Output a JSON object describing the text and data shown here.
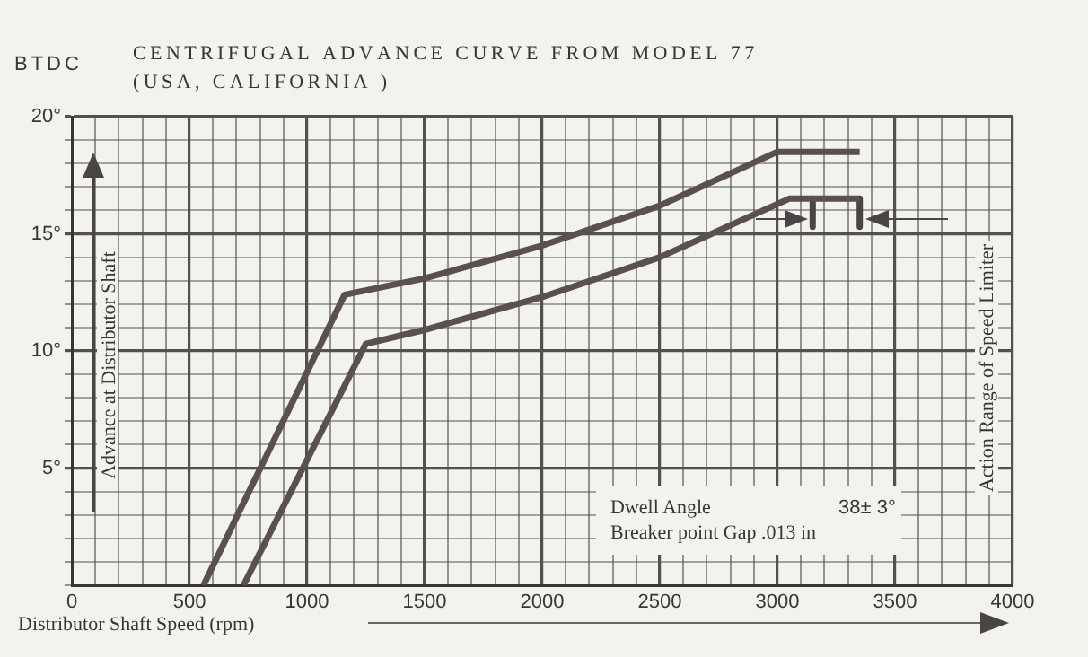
{
  "chart_data": {
    "type": "line",
    "title": "CENTRIFUGAL ADVANCE CURVE FROM MODEL 77",
    "subtitle": "(USA, CALIFORNIA )",
    "xlabel": "Distributor Shaft Speed (rpm)",
    "ylabel": "Advance at Distributor Shaft",
    "annotations": [
      "BTDC",
      "Dwell Angle",
      "38± 3°",
      "Breaker point Gap .013 in",
      "Action Range of Speed Limiter"
    ],
    "series": [
      {
        "color": "#5a5050",
        "x": [
          560,
          1160,
          1500,
          2000,
          2500,
          3000,
          3350
        ],
        "values": [
          0,
          12.4,
          13.1,
          14.5,
          16.2,
          18.5,
          18.5
        ]
      },
      {
        "color": "#5a5050",
        "x": [
          730,
          1250,
          1500,
          2000,
          2500,
          3050,
          3350
        ],
        "values": [
          0,
          10.3,
          10.9,
          12.3,
          14.0,
          16.5,
          16.5
        ]
      },
      {
        "color": "#4a4444",
        "x": [
          3150,
          3150
        ],
        "values": [
          16.5,
          15.3
        ]
      },
      {
        "color": "#4a4444",
        "x": [
          3350,
          3350
        ],
        "values": [
          16.5,
          15.3
        ]
      }
    ],
    "xlim": [
      0,
      4000
    ],
    "xticks": [
      0,
      {
        "value": 100,
        "label": null
      },
      {
        "value": 200,
        "label": null
      },
      {
        "value": 300,
        "label": null
      },
      {
        "value": 400,
        "label": null
      },
      500,
      {
        "value": 600,
        "label": null
      },
      {
        "value": 700,
        "label": null
      },
      {
        "value": 800,
        "label": null
      },
      {
        "value": 900,
        "label": null
      },
      1000,
      {
        "value": 1100,
        "label": null
      },
      {
        "value": 1200,
        "label": null
      },
      {
        "value": 1300,
        "label": null
      },
      {
        "value": 1400,
        "label": null
      },
      1500,
      {
        "value": 1600,
        "label": null
      },
      {
        "value": 1700,
        "label": null
      },
      {
        "value": 1800,
        "label": null
      },
      {
        "value": 1900,
        "label": null
      },
      2000,
      {
        "value": 2100,
        "label": null
      },
      {
        "value": 2200,
        "label": null
      },
      {
        "value": 2300,
        "label": null
      },
      {
        "value": 2400,
        "label": null
      },
      2500,
      {
        "value": 2600,
        "label": null
      },
      {
        "value": 2700,
        "label": null
      },
      {
        "value": 2800,
        "label": null
      },
      {
        "value": 2900,
        "label": null
      },
      3000,
      {
        "value": 3100,
        "label": null
      },
      {
        "value": 3200,
        "label": null
      },
      {
        "value": 3300,
        "label": null
      },
      {
        "value": 3400,
        "label": null
      },
      3500,
      {
        "value": 3600,
        "label": null
      },
      {
        "value": 3700,
        "label": null
      },
      {
        "value": 3800,
        "label": null
      },
      {
        "value": 3900,
        "label": null
      },
      4000
    ],
    "ylim": [
      0,
      20
    ],
    "yticks": [
      {
        "value": 0,
        "label": null
      },
      {
        "value": 1,
        "label": null
      },
      {
        "value": 2,
        "label": null
      },
      {
        "value": 3,
        "label": null
      },
      {
        "value": 4,
        "label": null
      },
      {
        "value": 5,
        "label": "5°"
      },
      {
        "value": 6,
        "label": null
      },
      {
        "value": 7,
        "label": null
      },
      {
        "value": 8,
        "label": null
      },
      {
        "value": 9,
        "label": null
      },
      {
        "value": 10,
        "label": "10°"
      },
      {
        "value": 11,
        "label": null
      },
      {
        "value": 12,
        "label": null
      },
      {
        "value": 13,
        "label": null
      },
      {
        "value": 14,
        "label": null
      },
      {
        "value": 15,
        "label": "15°"
      },
      {
        "value": 16,
        "label": null
      },
      {
        "value": 17,
        "label": null
      },
      {
        "value": 18,
        "label": null
      },
      {
        "value": 19,
        "label": null
      },
      {
        "value": 20,
        "label": "20°"
      }
    ],
    "grid": true,
    "legend": false,
    "marker": "none",
    "line_style": "solid"
  }
}
